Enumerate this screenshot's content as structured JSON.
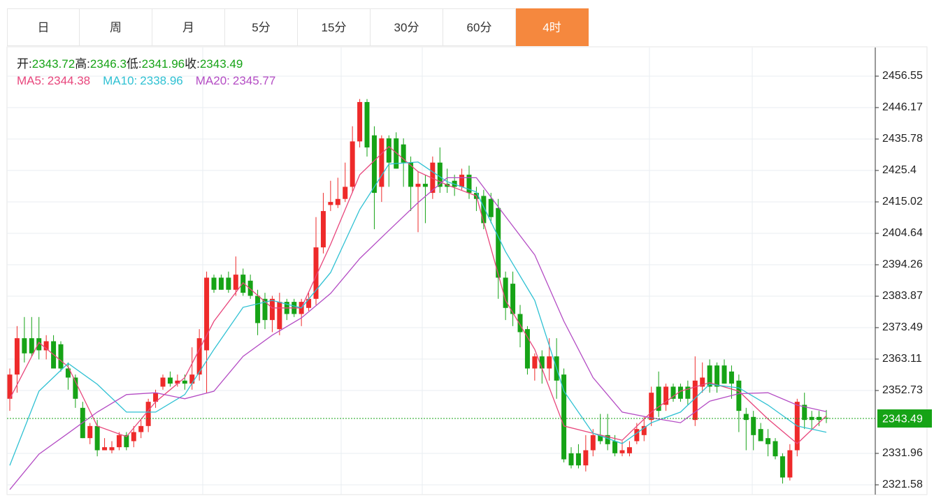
{
  "tabs": [
    "日",
    "周",
    "月",
    "5分",
    "15分",
    "30分",
    "60分",
    "4时"
  ],
  "active_tab": 7,
  "chart_data": {
    "type": "candlestick",
    "ohlc_labels": [
      "开:",
      "高:",
      "低:",
      "收:"
    ],
    "up_color": "#ee2a2a",
    "down_color": "#16a316",
    "ylim": [
      2318.35,
      2466.01
    ],
    "yticks": [
      2321.58,
      2331.96,
      2352.73,
      2363.11,
      2373.49,
      2383.87,
      2394.26,
      2404.64,
      2415.02,
      2425.4,
      2435.78,
      2446.17,
      2456.55
    ],
    "candles": [
      [
        2350,
        2360,
        2346,
        2358
      ],
      [
        2358,
        2374,
        2352,
        2370
      ],
      [
        2370,
        2377,
        2362,
        2365
      ],
      [
        2370,
        2377,
        2364,
        2365
      ],
      [
        2370,
        2377,
        2363,
        2366
      ],
      [
        2366,
        2371,
        2363,
        2369
      ],
      [
        2369,
        2371,
        2360,
        2360
      ],
      [
        2368,
        2369,
        2359,
        2360
      ],
      [
        2360,
        2362,
        2353,
        2357
      ],
      [
        2357,
        2358,
        2347,
        2350
      ],
      [
        2347,
        2349,
        2337,
        2337
      ],
      [
        2337,
        2342,
        2335,
        2341
      ],
      [
        2341,
        2343,
        2331,
        2333
      ],
      [
        2333,
        2337,
        2333,
        2334
      ],
      [
        2333,
        2336,
        2332,
        2334
      ],
      [
        2334,
        2339,
        2333,
        2338
      ],
      [
        2338,
        2339,
        2333,
        2334
      ],
      [
        2336,
        2341,
        2334,
        2339
      ],
      [
        2339,
        2343,
        2337,
        2341
      ],
      [
        2341,
        2350,
        2339,
        2349
      ],
      [
        2349,
        2353,
        2347,
        2352
      ],
      [
        2354,
        2358,
        2353,
        2357
      ],
      [
        2357,
        2359,
        2354,
        2355
      ],
      [
        2355,
        2358,
        2354,
        2356
      ],
      [
        2356,
        2358,
        2353,
        2355
      ],
      [
        2355,
        2367,
        2353,
        2358
      ],
      [
        2358,
        2373,
        2356,
        2370
      ],
      [
        2366,
        2392,
        2352,
        2390
      ],
      [
        2390,
        2391,
        2385,
        2386
      ],
      [
        2390,
        2391,
        2386,
        2386
      ],
      [
        2390,
        2392,
        2385,
        2386
      ],
      [
        2386,
        2397,
        2384,
        2391
      ],
      [
        2391,
        2393,
        2384,
        2385
      ],
      [
        2389,
        2391,
        2383,
        2384
      ],
      [
        2384,
        2386,
        2371,
        2375
      ],
      [
        2383,
        2385,
        2373,
        2376
      ],
      [
        2376,
        2384,
        2372,
        2383
      ],
      [
        2373,
        2385,
        2371,
        2382
      ],
      [
        2382,
        2383,
        2376,
        2378
      ],
      [
        2382,
        2383,
        2377,
        2378
      ],
      [
        2378,
        2383,
        2374,
        2382
      ],
      [
        2380,
        2385,
        2379,
        2383
      ],
      [
        2383,
        2410,
        2381,
        2400
      ],
      [
        2400,
        2418,
        2398,
        2412
      ],
      [
        2414,
        2422,
        2412,
        2415
      ],
      [
        2414,
        2423,
        2413,
        2416
      ],
      [
        2416,
        2428,
        2415,
        2420
      ],
      [
        2420,
        2440,
        2418,
        2435
      ],
      [
        2435,
        2449,
        2433,
        2448
      ],
      [
        2448,
        2449,
        2430,
        2433
      ],
      [
        2437,
        2440,
        2406,
        2418
      ],
      [
        2420,
        2437,
        2415,
        2436
      ],
      [
        2436,
        2437,
        2420,
        2428
      ],
      [
        2436,
        2438,
        2426,
        2426
      ],
      [
        2434,
        2436,
        2420,
        2428
      ],
      [
        2428,
        2430,
        2412,
        2420
      ],
      [
        2420,
        2425,
        2405,
        2421
      ],
      [
        2421,
        2424,
        2408,
        2420
      ],
      [
        2418,
        2430,
        2416,
        2428
      ],
      [
        2428,
        2433,
        2418,
        2420
      ],
      [
        2421,
        2426,
        2418,
        2420
      ],
      [
        2422,
        2424,
        2417,
        2420
      ],
      [
        2420,
        2426,
        2419,
        2424
      ],
      [
        2424,
        2427,
        2416,
        2418
      ],
      [
        2418,
        2420,
        2412,
        2416
      ],
      [
        2417,
        2419,
        2406,
        2408
      ],
      [
        2416,
        2418,
        2408,
        2410
      ],
      [
        2413,
        2416,
        2383,
        2390
      ],
      [
        2390,
        2392,
        2376,
        2380
      ],
      [
        2388,
        2392,
        2374,
        2378
      ],
      [
        2378,
        2381,
        2367,
        2372
      ],
      [
        2373,
        2374,
        2358,
        2360
      ],
      [
        2360,
        2365,
        2356,
        2364
      ],
      [
        2364,
        2366,
        2355,
        2360
      ],
      [
        2360,
        2370,
        2356,
        2364
      ],
      [
        2364,
        2370,
        2350,
        2356
      ],
      [
        2358,
        2360,
        2329,
        2330
      ],
      [
        2332,
        2334,
        2327,
        2328
      ],
      [
        2332,
        2335,
        2327,
        2328
      ],
      [
        2328,
        2338,
        2326,
        2333
      ],
      [
        2333,
        2340,
        2331,
        2338
      ],
      [
        2338,
        2345,
        2335,
        2336
      ],
      [
        2338,
        2345,
        2333,
        2335
      ],
      [
        2336,
        2338,
        2331,
        2332
      ],
      [
        2332,
        2336,
        2331,
        2333
      ],
      [
        2332,
        2336,
        2331,
        2334
      ],
      [
        2336,
        2342,
        2335,
        2340
      ],
      [
        2338,
        2344,
        2336,
        2341
      ],
      [
        2343,
        2354,
        2341,
        2352
      ],
      [
        2354,
        2359,
        2344,
        2346
      ],
      [
        2348,
        2355,
        2346,
        2354
      ],
      [
        2354,
        2355,
        2349,
        2350
      ],
      [
        2354,
        2355,
        2349,
        2350
      ],
      [
        2354,
        2356,
        2348,
        2350
      ],
      [
        2343,
        2364,
        2341,
        2356
      ],
      [
        2354,
        2362,
        2352,
        2357
      ],
      [
        2361,
        2363,
        2352,
        2354
      ],
      [
        2361,
        2362,
        2352,
        2354
      ],
      [
        2361,
        2363,
        2355,
        2355
      ],
      [
        2359,
        2361,
        2350,
        2355
      ],
      [
        2356,
        2358,
        2339,
        2346
      ],
      [
        2345,
        2347,
        2333,
        2343
      ],
      [
        2344,
        2346,
        2333,
        2338
      ],
      [
        2340,
        2342,
        2336,
        2336
      ],
      [
        2337,
        2340,
        2331,
        2335
      ],
      [
        2336,
        2337,
        2330,
        2331
      ],
      [
        2331,
        2332,
        2322,
        2324
      ],
      [
        2324,
        2335,
        2323,
        2333
      ],
      [
        2333,
        2350,
        2331,
        2349
      ],
      [
        2348,
        2352,
        2340,
        2343
      ],
      [
        2344,
        2346,
        2340,
        2343
      ],
      [
        2344,
        2346,
        2341,
        2343
      ],
      [
        2343.72,
        2346.3,
        2341.96,
        2343.49
      ]
    ],
    "ma_x": [
      0,
      4,
      8,
      12,
      16,
      20,
      24,
      28,
      32,
      36,
      40,
      44,
      48,
      52,
      56,
      60,
      64,
      68,
      72,
      76,
      80,
      84,
      88,
      92,
      96,
      100,
      104,
      108,
      112
    ],
    "series": [
      {
        "name": "MA5:",
        "color": "#e8467c",
        "values": [
          2350,
          2368.6,
          2360.6,
          2341,
          2337.5,
          2349,
          2357,
          2375.6,
          2388.3,
          2380,
          2380,
          2401,
          2424,
          2433.3,
          2425,
          2420.6,
          2417,
          2382.5,
          2366.3,
          2341,
          2338.6,
          2336.3,
          2345.6,
          2352.5,
          2355.3,
          2352.5,
          2343.3,
          2335.2,
          2344.38
        ]
      },
      {
        "name": "MA10:",
        "color": "#2fc1d3",
        "values": [
          2328,
          2352.5,
          2361.7,
          2354.8,
          2345.6,
          2345.6,
          2351.4,
          2366.3,
          2380.2,
          2382.5,
          2380,
          2391.7,
          2412.5,
          2427.5,
          2428.2,
          2421.7,
          2418.3,
          2398.6,
          2382.5,
          2352.5,
          2338.6,
          2335.2,
          2342.1,
          2345.6,
          2354.8,
          2353.6,
          2347.9,
          2341,
          2338.96
        ]
      },
      {
        "name": "MA20:",
        "color": "#b44cc4",
        "values": [
          2320,
          2331.7,
          2338.6,
          2345.6,
          2351.4,
          2352,
          2350,
          2352.5,
          2364,
          2371,
          2376.7,
          2384.8,
          2396.3,
          2405.6,
          2414.8,
          2423,
          2423,
          2410.2,
          2397.5,
          2375.6,
          2357,
          2345.6,
          2343.7,
          2342.1,
          2349.2,
          2351.7,
          2352,
          2347.9,
          2345.77
        ]
      }
    ]
  }
}
